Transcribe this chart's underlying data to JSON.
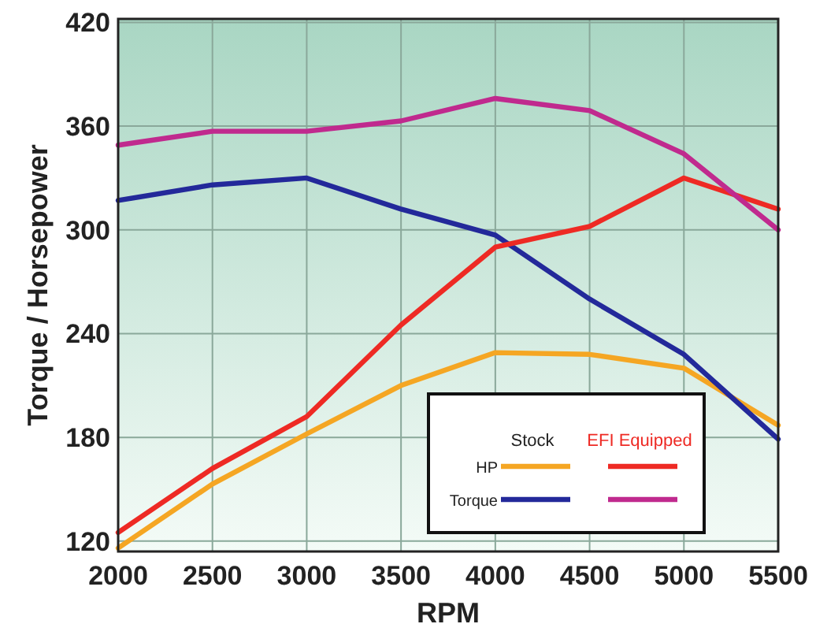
{
  "chart_data": {
    "type": "line",
    "xlabel": "RPM",
    "ylabel": "Torque / Horsepower",
    "x": [
      2000,
      2500,
      3000,
      3500,
      4000,
      4500,
      5000,
      5500
    ],
    "xlim": [
      2000,
      5500
    ],
    "xticks": [
      2000,
      2500,
      3000,
      3500,
      4000,
      4500,
      5000,
      5500
    ],
    "ylim": [
      114,
      422
    ],
    "yticks": [
      120,
      180,
      240,
      300,
      360,
      420
    ],
    "grid": true,
    "legend": "bottom right",
    "marker": "none",
    "line_style": "solid",
    "annotations": [
      "Stock",
      "EFI Equipped"
    ],
    "series": [
      {
        "name": "HP",
        "color": "#f5a623",
        "values": [
          116,
          153,
          182,
          210,
          229,
          228,
          220,
          187
        ]
      },
      {
        "name": "Torque",
        "color": "#23299a",
        "values": [
          317,
          326,
          330,
          312,
          297,
          260,
          228,
          179
        ]
      },
      {
        "color": "#ee2a24",
        "values": [
          125,
          162,
          192,
          245,
          290,
          302,
          330,
          312
        ]
      },
      {
        "color": "#c02a8e",
        "values": [
          349,
          357,
          357,
          363,
          376,
          369,
          344,
          300
        ]
      }
    ]
  }
}
